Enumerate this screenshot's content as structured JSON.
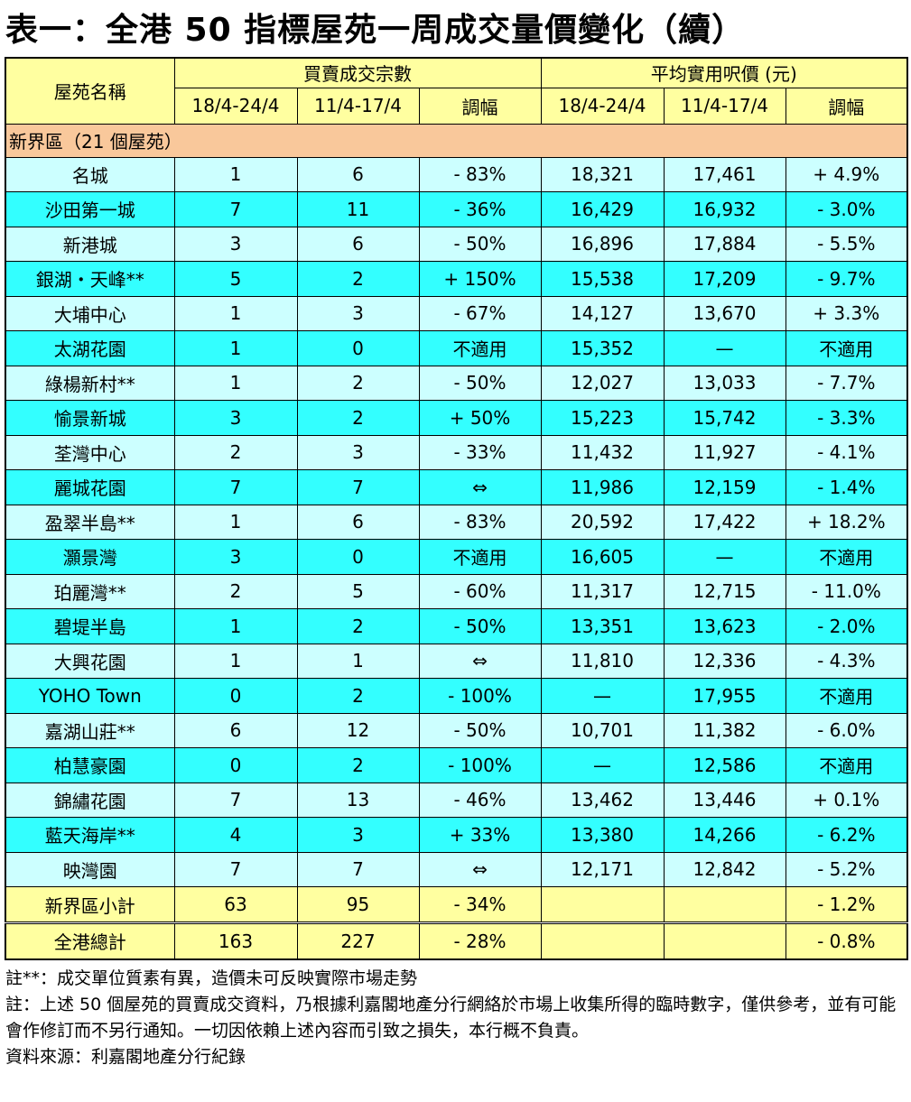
{
  "title": "表一：全港 50 指標屋苑一周成交量價變化（續）",
  "table": {
    "header": {
      "name": "屋苑名稱",
      "group1": "買賣成交宗數",
      "group2": "平均實用呎價 (元)",
      "subcolumns": [
        "18/4-24/4",
        "11/4-17/4",
        "調幅",
        "18/4-24/4",
        "11/4-17/4",
        "調幅"
      ]
    },
    "section": "新界區（21 個屋苑）",
    "rows": [
      [
        "名城",
        "1",
        "6",
        "- 83%",
        "18,321",
        "17,461",
        "+ 4.9%"
      ],
      [
        "沙田第一城",
        "7",
        "11",
        "- 36%",
        "16,429",
        "16,932",
        "- 3.0%"
      ],
      [
        "新港城",
        "3",
        "6",
        "- 50%",
        "16,896",
        "17,884",
        "- 5.5%"
      ],
      [
        "銀湖・天峰**",
        "5",
        "2",
        "+ 150%",
        "15,538",
        "17,209",
        "- 9.7%"
      ],
      [
        "大埔中心",
        "1",
        "3",
        "- 67%",
        "14,127",
        "13,670",
        "+ 3.3%"
      ],
      [
        "太湖花園",
        "1",
        "0",
        "不適用",
        "15,352",
        "—",
        "不適用"
      ],
      [
        "綠楊新村**",
        "1",
        "2",
        "- 50%",
        "12,027",
        "13,033",
        "- 7.7%"
      ],
      [
        "愉景新城",
        "3",
        "2",
        "+ 50%",
        "15,223",
        "15,742",
        "- 3.3%"
      ],
      [
        "荃灣中心",
        "2",
        "3",
        "- 33%",
        "11,432",
        "11,927",
        "- 4.1%"
      ],
      [
        "麗城花園",
        "7",
        "7",
        "⇔",
        "11,986",
        "12,159",
        "- 1.4%"
      ],
      [
        "盈翠半島**",
        "1",
        "6",
        "- 83%",
        "20,592",
        "17,422",
        "+ 18.2%"
      ],
      [
        "灝景灣",
        "3",
        "0",
        "不適用",
        "16,605",
        "—",
        "不適用"
      ],
      [
        "珀麗灣**",
        "2",
        "5",
        "- 60%",
        "11,317",
        "12,715",
        "- 11.0%"
      ],
      [
        "碧堤半島",
        "1",
        "2",
        "- 50%",
        "13,351",
        "13,623",
        "- 2.0%"
      ],
      [
        "大興花園",
        "1",
        "1",
        "⇔",
        "11,810",
        "12,336",
        "- 4.3%"
      ],
      [
        "YOHO Town",
        "0",
        "2",
        "- 100%",
        "—",
        "17,955",
        "不適用"
      ],
      [
        "嘉湖山莊**",
        "6",
        "12",
        "- 50%",
        "10,701",
        "11,382",
        "- 6.0%"
      ],
      [
        "柏慧豪園",
        "0",
        "2",
        "- 100%",
        "—",
        "12,586",
        "不適用"
      ],
      [
        "錦繡花園",
        "7",
        "13",
        "- 46%",
        "13,462",
        "13,446",
        "+ 0.1%"
      ],
      [
        "藍天海岸**",
        "4",
        "3",
        "+ 33%",
        "13,380",
        "14,266",
        "- 6.2%"
      ],
      [
        "映灣園",
        "7",
        "7",
        "⇔",
        "12,171",
        "12,842",
        "- 5.2%"
      ]
    ],
    "summary": [
      [
        "新界區小計",
        "63",
        "95",
        "- 34%",
        null,
        null,
        "- 1.2%"
      ],
      [
        "全港總計",
        "163",
        "227",
        "- 28%",
        null,
        null,
        "- 0.8%"
      ]
    ]
  },
  "notes": [
    "註**：成交單位質素有異，造價未可反映實際市場走勢",
    "註：上述 50 個屋苑的買賣成交資料，乃根據利嘉閣地產分行網絡於市場上收集所得的臨時數字，僅供參考，並有可能會作修訂而不另行通知。一切因依賴上述內容而引致之損失，本行概不負責。",
    "資料來源：利嘉閣地產分行紀錄"
  ]
}
